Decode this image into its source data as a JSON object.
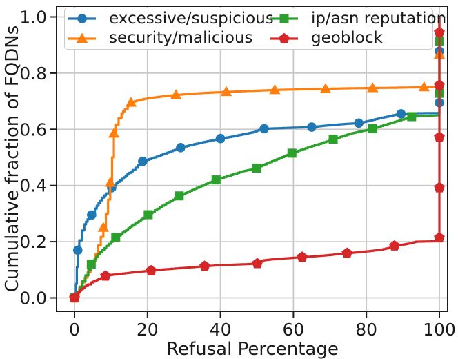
{
  "chart_data": {
    "type": "line",
    "style": "cdf-step-curves",
    "title": "",
    "xlabel": "Refusal Percentage",
    "ylabel": "Cumulative fraction of FQDNs",
    "xlim": [
      -5,
      102.3
    ],
    "ylim": [
      -0.05,
      1.04
    ],
    "xticks": [
      0,
      20,
      40,
      60,
      80,
      100
    ],
    "yticks": [
      0,
      0.2,
      0.4,
      0.6,
      0.8,
      1.0
    ],
    "ytick_labels": [
      "0.0",
      "0.2",
      "0.4",
      "0.6",
      "0.8",
      "1.0"
    ],
    "grid": true,
    "legend": {
      "location": "upper left",
      "ncol": 2,
      "order": [
        "excessive/suspicious",
        "security/malicious",
        "ip/asn reputation",
        "geoblock"
      ]
    },
    "series": [
      {
        "name": "excessive/suspicious",
        "color": "#1f77b4",
        "marker": "circle",
        "points": [
          [
            0,
            0
          ],
          [
            0.4,
            0.05
          ],
          [
            0.65,
            0.11
          ],
          [
            0.9,
            0.17
          ],
          [
            1.3,
            0.205
          ],
          [
            2,
            0.24
          ],
          [
            2.7,
            0.262
          ],
          [
            3.6,
            0.28
          ],
          [
            4.7,
            0.295
          ],
          [
            5.6,
            0.318
          ],
          [
            6.6,
            0.338
          ],
          [
            7.6,
            0.357
          ],
          [
            8.6,
            0.372
          ],
          [
            9.4,
            0.383
          ],
          [
            10.2,
            0.392
          ],
          [
            11.5,
            0.408
          ],
          [
            13,
            0.424
          ],
          [
            14.5,
            0.44
          ],
          [
            16,
            0.455
          ],
          [
            17.4,
            0.472
          ],
          [
            18.7,
            0.486
          ],
          [
            20.5,
            0.494
          ],
          [
            22.5,
            0.503
          ],
          [
            24.8,
            0.514
          ],
          [
            27,
            0.525
          ],
          [
            29.1,
            0.535
          ],
          [
            31.5,
            0.543
          ],
          [
            34,
            0.551
          ],
          [
            37,
            0.559
          ],
          [
            40,
            0.567
          ],
          [
            43,
            0.574
          ],
          [
            46,
            0.582
          ],
          [
            49,
            0.59
          ],
          [
            50.5,
            0.598
          ],
          [
            52,
            0.602
          ],
          [
            56,
            0.604
          ],
          [
            60,
            0.606
          ],
          [
            65,
            0.608
          ],
          [
            68.5,
            0.613
          ],
          [
            72,
            0.617
          ],
          [
            75,
            0.62
          ],
          [
            77.9,
            0.622
          ],
          [
            80.5,
            0.63
          ],
          [
            83,
            0.638
          ],
          [
            85.5,
            0.645
          ],
          [
            88,
            0.652
          ],
          [
            89.5,
            0.655
          ],
          [
            93,
            0.657
          ],
          [
            100,
            0.658
          ],
          [
            100,
            1.0
          ]
        ],
        "marker_points": [
          [
            0.9,
            0.17
          ],
          [
            4.7,
            0.295
          ],
          [
            10.2,
            0.392
          ],
          [
            18.7,
            0.486
          ],
          [
            29.1,
            0.535
          ],
          [
            40,
            0.567
          ],
          [
            52,
            0.602
          ],
          [
            65,
            0.608
          ],
          [
            77.9,
            0.622
          ],
          [
            89.5,
            0.655
          ],
          [
            100,
            0.695
          ],
          [
            100,
            0.878
          ]
        ]
      },
      {
        "name": "security/malicious",
        "color": "#ff7f0e",
        "marker": "triangle",
        "points": [
          [
            0,
            0
          ],
          [
            0.7,
            0.015
          ],
          [
            1.3,
            0.035
          ],
          [
            2,
            0.055
          ],
          [
            2.8,
            0.072
          ],
          [
            3.6,
            0.092
          ],
          [
            4.4,
            0.112
          ],
          [
            5.1,
            0.132
          ],
          [
            5.8,
            0.157
          ],
          [
            6.5,
            0.187
          ],
          [
            7.2,
            0.217
          ],
          [
            7.9,
            0.25
          ],
          [
            8.6,
            0.3
          ],
          [
            9.2,
            0.35
          ],
          [
            9.8,
            0.41
          ],
          [
            10.3,
            0.5
          ],
          [
            10.8,
            0.585
          ],
          [
            11.4,
            0.617
          ],
          [
            12.1,
            0.64
          ],
          [
            12.9,
            0.657
          ],
          [
            13.8,
            0.671
          ],
          [
            14.6,
            0.683
          ],
          [
            15.5,
            0.695
          ],
          [
            17,
            0.702
          ],
          [
            19,
            0.708
          ],
          [
            21.5,
            0.713
          ],
          [
            24.5,
            0.718
          ],
          [
            27.8,
            0.722
          ],
          [
            31,
            0.726
          ],
          [
            35,
            0.729
          ],
          [
            38,
            0.731
          ],
          [
            41.6,
            0.733
          ],
          [
            47,
            0.736
          ],
          [
            51,
            0.738
          ],
          [
            54.9,
            0.74
          ],
          [
            61,
            0.742
          ],
          [
            65,
            0.743
          ],
          [
            68.8,
            0.744
          ],
          [
            75,
            0.746
          ],
          [
            81.7,
            0.747
          ],
          [
            88,
            0.748
          ],
          [
            92,
            0.749
          ],
          [
            95.8,
            0.75
          ],
          [
            100,
            0.752
          ],
          [
            100,
            1.0
          ]
        ],
        "marker_points": [
          [
            7.9,
            0.25
          ],
          [
            9.8,
            0.41
          ],
          [
            10.8,
            0.585
          ],
          [
            15.5,
            0.695
          ],
          [
            27.8,
            0.722
          ],
          [
            41.6,
            0.733
          ],
          [
            54.9,
            0.74
          ],
          [
            68.8,
            0.744
          ],
          [
            81.7,
            0.747
          ],
          [
            95.8,
            0.75
          ],
          [
            100,
            0.866
          ]
        ]
      },
      {
        "name": "ip/asn reputation",
        "color": "#2ca02c",
        "marker": "square",
        "points": [
          [
            0,
            0
          ],
          [
            0.7,
            0.02
          ],
          [
            1.4,
            0.04
          ],
          [
            2.2,
            0.06
          ],
          [
            3,
            0.08
          ],
          [
            3.8,
            0.1
          ],
          [
            4.6,
            0.12
          ],
          [
            5.5,
            0.138
          ],
          [
            6.5,
            0.155
          ],
          [
            7.6,
            0.17
          ],
          [
            8.7,
            0.185
          ],
          [
            10,
            0.2
          ],
          [
            11.3,
            0.215
          ],
          [
            12.7,
            0.228
          ],
          [
            14.2,
            0.243
          ],
          [
            15.7,
            0.257
          ],
          [
            17.2,
            0.27
          ],
          [
            18.7,
            0.283
          ],
          [
            20.2,
            0.296
          ],
          [
            22,
            0.312
          ],
          [
            24,
            0.328
          ],
          [
            26.3,
            0.345
          ],
          [
            28.7,
            0.363
          ],
          [
            31,
            0.377
          ],
          [
            33.5,
            0.392
          ],
          [
            36,
            0.406
          ],
          [
            38.8,
            0.42
          ],
          [
            41,
            0.43
          ],
          [
            43.5,
            0.44
          ],
          [
            45.8,
            0.45
          ],
          [
            48,
            0.456
          ],
          [
            49.9,
            0.462
          ],
          [
            51.5,
            0.472
          ],
          [
            53.5,
            0.483
          ],
          [
            55.5,
            0.494
          ],
          [
            57.5,
            0.505
          ],
          [
            59.6,
            0.515
          ],
          [
            62,
            0.527
          ],
          [
            64.5,
            0.538
          ],
          [
            67,
            0.548
          ],
          [
            69,
            0.557
          ],
          [
            70.9,
            0.565
          ],
          [
            73.5,
            0.576
          ],
          [
            76,
            0.586
          ],
          [
            78.8,
            0.594
          ],
          [
            81.7,
            0.602
          ],
          [
            84,
            0.612
          ],
          [
            86.5,
            0.622
          ],
          [
            89,
            0.632
          ],
          [
            91,
            0.64
          ],
          [
            92.4,
            0.645
          ],
          [
            95.5,
            0.648
          ],
          [
            100,
            0.65
          ],
          [
            100,
            1.0
          ]
        ],
        "marker_points": [
          [
            0,
            0
          ],
          [
            4.6,
            0.12
          ],
          [
            11.3,
            0.215
          ],
          [
            20.2,
            0.296
          ],
          [
            28.7,
            0.363
          ],
          [
            38.8,
            0.42
          ],
          [
            49.9,
            0.462
          ],
          [
            59.6,
            0.515
          ],
          [
            70.9,
            0.565
          ],
          [
            81.7,
            0.602
          ],
          [
            92.4,
            0.645
          ],
          [
            100,
            0.728
          ],
          [
            100,
            0.913
          ]
        ]
      },
      {
        "name": "geoblock",
        "color": "#d62728",
        "marker": "pentagon",
        "points": [
          [
            0,
            0
          ],
          [
            0.9,
            0.02
          ],
          [
            1.9,
            0.032
          ],
          [
            2.8,
            0.041
          ],
          [
            3.7,
            0.048
          ],
          [
            4.6,
            0.055
          ],
          [
            5.6,
            0.061
          ],
          [
            6.6,
            0.067
          ],
          [
            7.5,
            0.072
          ],
          [
            8.5,
            0.078
          ],
          [
            10,
            0.082
          ],
          [
            12,
            0.085
          ],
          [
            14,
            0.088
          ],
          [
            16,
            0.091
          ],
          [
            18.5,
            0.094
          ],
          [
            21,
            0.097
          ],
          [
            24,
            0.101
          ],
          [
            27,
            0.104
          ],
          [
            30,
            0.107
          ],
          [
            33,
            0.11
          ],
          [
            35.7,
            0.113
          ],
          [
            39,
            0.116
          ],
          [
            43,
            0.118
          ],
          [
            47,
            0.12
          ],
          [
            50.1,
            0.122
          ],
          [
            51.8,
            0.134
          ],
          [
            54,
            0.137
          ],
          [
            58,
            0.141
          ],
          [
            62.4,
            0.145
          ],
          [
            65.5,
            0.148
          ],
          [
            68.5,
            0.151
          ],
          [
            71.5,
            0.155
          ],
          [
            74.7,
            0.159
          ],
          [
            78,
            0.163
          ],
          [
            81,
            0.167
          ],
          [
            84,
            0.172
          ],
          [
            86,
            0.178
          ],
          [
            87.7,
            0.185
          ],
          [
            90,
            0.19
          ],
          [
            92,
            0.195
          ],
          [
            93.5,
            0.2
          ],
          [
            100,
            0.202
          ],
          [
            100,
            1.0
          ]
        ],
        "marker_points": [
          [
            0,
            0
          ],
          [
            8.5,
            0.078
          ],
          [
            21,
            0.097
          ],
          [
            35.7,
            0.113
          ],
          [
            50.1,
            0.122
          ],
          [
            62.4,
            0.145
          ],
          [
            74.7,
            0.159
          ],
          [
            87.7,
            0.185
          ],
          [
            100,
            0.214
          ],
          [
            100,
            0.392
          ],
          [
            100,
            0.572
          ],
          [
            100,
            0.757
          ],
          [
            100,
            0.945
          ]
        ]
      }
    ]
  }
}
